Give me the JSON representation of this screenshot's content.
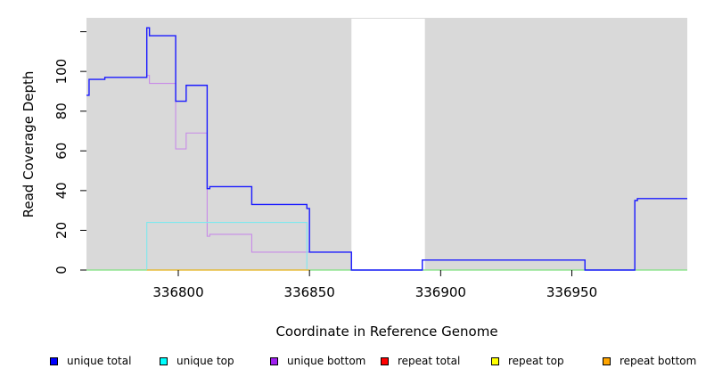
{
  "chart_data": {
    "type": "line",
    "xlabel": "Coordinate in Reference Genome",
    "ylabel": "Read Coverage Depth",
    "xlim": [
      336765,
      336994
    ],
    "ylim": [
      0,
      127
    ],
    "x_ticks": [
      336800,
      336850,
      336900,
      336950
    ],
    "x_tick_labels": [
      "336800",
      "336850",
      "336900",
      "336950"
    ],
    "y_ticks": [
      0,
      20,
      40,
      60,
      80,
      100
    ],
    "y_tick_labels": [
      "0",
      "20",
      "40",
      "60",
      "80",
      "100"
    ],
    "extra_y_ticks": [
      120
    ],
    "background_color": "#d9d9d9",
    "gap_regions": [
      [
        336866,
        336894
      ]
    ],
    "series": [
      {
        "name": "unique total",
        "color": "#0000ff",
        "line_color": "#1a1aff",
        "points": [
          [
            336765,
            88
          ],
          [
            336766,
            88
          ],
          [
            336766,
            96
          ],
          [
            336772,
            96
          ],
          [
            336772,
            97
          ],
          [
            336788,
            97
          ],
          [
            336788,
            122
          ],
          [
            336789,
            122
          ],
          [
            336789,
            118
          ],
          [
            336799,
            118
          ],
          [
            336799,
            85
          ],
          [
            336803,
            85
          ],
          [
            336803,
            93
          ],
          [
            336811,
            93
          ],
          [
            336811,
            41
          ],
          [
            336812,
            41
          ],
          [
            336812,
            42
          ],
          [
            336828,
            42
          ],
          [
            336828,
            33
          ],
          [
            336849,
            33
          ],
          [
            336849,
            31
          ],
          [
            336850,
            31
          ],
          [
            336850,
            9
          ],
          [
            336866,
            9
          ],
          [
            336866,
            0
          ],
          [
            336893,
            0
          ],
          [
            336893,
            5
          ],
          [
            336955,
            5
          ],
          [
            336955,
            0
          ],
          [
            336974,
            0
          ],
          [
            336974,
            35
          ],
          [
            336975,
            35
          ],
          [
            336975,
            36
          ],
          [
            336994,
            36
          ]
        ]
      },
      {
        "name": "unique top",
        "color": "#00ffff",
        "line_color": "#7ee8ee",
        "points": [
          [
            336788,
            0
          ],
          [
            336788,
            24
          ],
          [
            336849,
            24
          ],
          [
            336849,
            0
          ]
        ]
      },
      {
        "name": "unique bottom",
        "color": "#a020f0",
        "line_color": "#c88ae8",
        "points": [
          [
            336788,
            98
          ],
          [
            336789,
            98
          ],
          [
            336789,
            94
          ],
          [
            336799,
            94
          ],
          [
            336799,
            61
          ],
          [
            336803,
            61
          ],
          [
            336803,
            69
          ],
          [
            336811,
            69
          ],
          [
            336811,
            17
          ],
          [
            336812,
            17
          ],
          [
            336812,
            18
          ],
          [
            336828,
            18
          ],
          [
            336828,
            9
          ],
          [
            336850,
            9
          ]
        ]
      },
      {
        "name": "repeat total",
        "color": "#ff0000",
        "line_color": "#ff0000",
        "points": []
      },
      {
        "name": "repeat top",
        "color": "#ffff00",
        "line_color": "#ffff00",
        "points": []
      },
      {
        "name": "repeat bottom",
        "color": "#ffa500",
        "line_color": "#ffa500",
        "points": [
          [
            336788,
            0
          ],
          [
            336850,
            0
          ]
        ]
      }
    ],
    "baseline_color": "#7ee07e"
  }
}
